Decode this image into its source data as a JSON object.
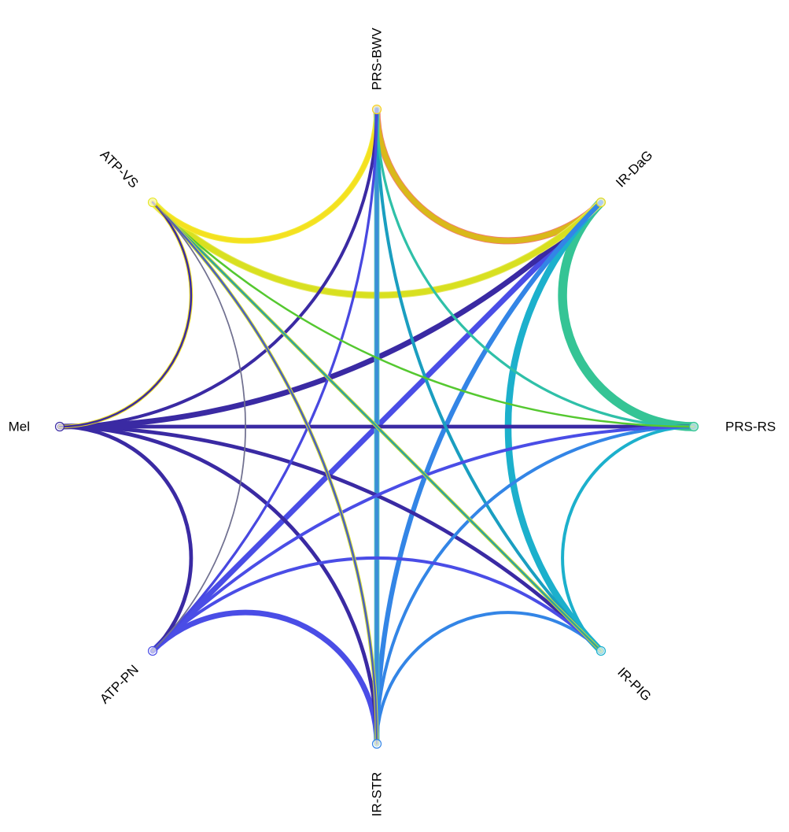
{
  "chart_data": {
    "type": "chord",
    "nodes": [
      {
        "id": "PRS-BWV",
        "label": "PRS-BWV",
        "color": "#f2d21a"
      },
      {
        "id": "IR-DaG",
        "label": "IR-DaG",
        "color": "#e4d91f"
      },
      {
        "id": "PRS-RS",
        "label": "PRS-RS",
        "color": "#35c495"
      },
      {
        "id": "IR-PIG",
        "label": "IR-PIG",
        "color": "#1cb0cc"
      },
      {
        "id": "IR-STR",
        "label": "IR-STR",
        "color": "#3385e6"
      },
      {
        "id": "ATP-PN",
        "label": "ATP-PN",
        "color": "#4a4de6"
      },
      {
        "id": "Mel",
        "label": "Mel",
        "color": "#3a2aa3"
      },
      {
        "id": "ATP-VS",
        "label": "ATP-VS",
        "color": "#e6e61a"
      }
    ],
    "links": [
      {
        "source": "PRS-BWV",
        "target": "IR-DaG",
        "weight": 8,
        "color": "#d9b91a",
        "outline": "#f08070"
      },
      {
        "source": "PRS-BWV",
        "target": "PRS-RS",
        "weight": 3,
        "color": "#2fc0a8"
      },
      {
        "source": "PRS-BWV",
        "target": "IR-PIG",
        "weight": 4,
        "color": "#1a9ec0"
      },
      {
        "source": "PRS-BWV",
        "target": "IR-STR",
        "weight": 5,
        "color": "#3a8fd8",
        "outline": "#55c0c0"
      },
      {
        "source": "PRS-BWV",
        "target": "ATP-PN",
        "weight": 3,
        "color": "#4848e0"
      },
      {
        "source": "PRS-BWV",
        "target": "Mel",
        "weight": 4,
        "color": "#3a2aa3"
      },
      {
        "source": "PRS-BWV",
        "target": "ATP-VS",
        "weight": 6,
        "color": "#f5e020",
        "outline": "#f0f03a"
      },
      {
        "source": "IR-DaG",
        "target": "PRS-RS",
        "weight": 14,
        "color": "#35c495"
      },
      {
        "source": "IR-DaG",
        "target": "IR-PIG",
        "weight": 10,
        "color": "#1cb0cc"
      },
      {
        "source": "IR-DaG",
        "target": "IR-STR",
        "weight": 7,
        "color": "#3385e6"
      },
      {
        "source": "IR-DaG",
        "target": "ATP-PN",
        "weight": 8,
        "color": "#4a4de6"
      },
      {
        "source": "IR-DaG",
        "target": "Mel",
        "weight": 8,
        "color": "#3a2aa3"
      },
      {
        "source": "IR-DaG",
        "target": "ATP-VS",
        "weight": 8,
        "color": "#d8e020",
        "outline": "#e8e860"
      },
      {
        "source": "PRS-RS",
        "target": "IR-PIG",
        "weight": 4,
        "color": "#1cb0cc"
      },
      {
        "source": "PRS-RS",
        "target": "IR-STR",
        "weight": 4,
        "color": "#3385e6"
      },
      {
        "source": "PRS-RS",
        "target": "ATP-PN",
        "weight": 4,
        "color": "#4a4de6"
      },
      {
        "source": "PRS-RS",
        "target": "Mel",
        "weight": 5,
        "color": "#3a2aa3"
      },
      {
        "source": "PRS-RS",
        "target": "ATP-VS",
        "weight": 2,
        "color": "#55c830"
      },
      {
        "source": "IR-PIG",
        "target": "IR-STR",
        "weight": 4,
        "color": "#3385e6"
      },
      {
        "source": "IR-PIG",
        "target": "ATP-PN",
        "weight": 4,
        "color": "#4a4de6"
      },
      {
        "source": "IR-PIG",
        "target": "Mel",
        "weight": 5,
        "color": "#3a2aa3"
      },
      {
        "source": "IR-PIG",
        "target": "ATP-VS",
        "weight": 2,
        "color": "#30a0a0",
        "outline": "#c8e030"
      },
      {
        "source": "IR-STR",
        "target": "ATP-PN",
        "weight": 8,
        "color": "#4a4de6"
      },
      {
        "source": "IR-STR",
        "target": "Mel",
        "weight": 5,
        "color": "#3a2aa3"
      },
      {
        "source": "IR-STR",
        "target": "ATP-VS",
        "weight": 2,
        "color": "#4a60c0",
        "outline": "#d8e030"
      },
      {
        "source": "ATP-PN",
        "target": "Mel",
        "weight": 5,
        "color": "#3a2aa3"
      },
      {
        "source": "ATP-PN",
        "target": "ATP-VS",
        "weight": 1,
        "color": "#707090"
      },
      {
        "source": "Mel",
        "target": "ATP-VS",
        "weight": 2,
        "color": "#3a2aa3",
        "outline": "#f0e020"
      }
    ]
  }
}
